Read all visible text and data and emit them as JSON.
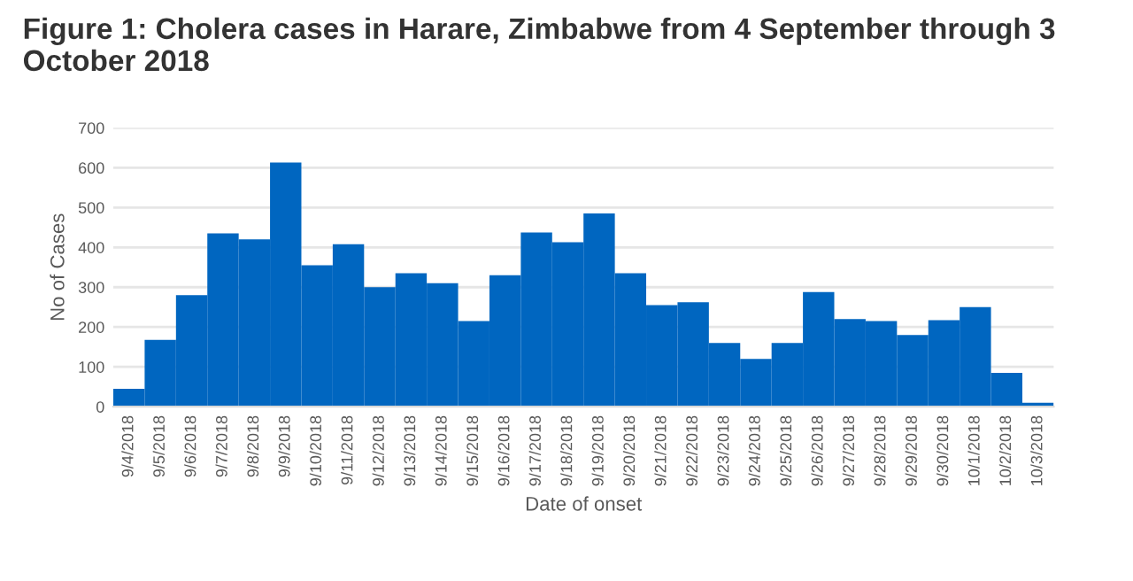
{
  "chart_data": {
    "type": "bar",
    "title": "Figure 1: Cholera cases in Harare, Zimbabwe from 4 September through 3 October 2018",
    "xlabel": "Date of onset",
    "ylabel": "No of Cases",
    "categories": [
      "9/4/2018",
      "9/5/2018",
      "9/6/2018",
      "9/7/2018",
      "9/8/2018",
      "9/9/2018",
      "9/10/2018",
      "9/11/2018",
      "9/12/2018",
      "9/13/2018",
      "9/14/2018",
      "9/15/2018",
      "9/16/2018",
      "9/17/2018",
      "9/18/2018",
      "9/19/2018",
      "9/20/2018",
      "9/21/2018",
      "9/22/2018",
      "9/23/2018",
      "9/24/2018",
      "9/25/2018",
      "9/26/2018",
      "9/27/2018",
      "9/28/2018",
      "9/29/2018",
      "9/30/2018",
      "10/1/2018",
      "10/2/2018",
      "10/3/2018"
    ],
    "values": [
      45,
      168,
      280,
      435,
      420,
      613,
      355,
      408,
      300,
      335,
      310,
      215,
      330,
      437,
      413,
      485,
      335,
      255,
      262,
      160,
      120,
      160,
      288,
      220,
      215,
      180,
      217,
      250,
      85,
      10
    ],
    "color": "#0066c0",
    "ylim": [
      0,
      700
    ],
    "yticks": [
      0,
      100,
      200,
      300,
      400,
      500,
      600,
      700
    ],
    "grid": "y"
  }
}
